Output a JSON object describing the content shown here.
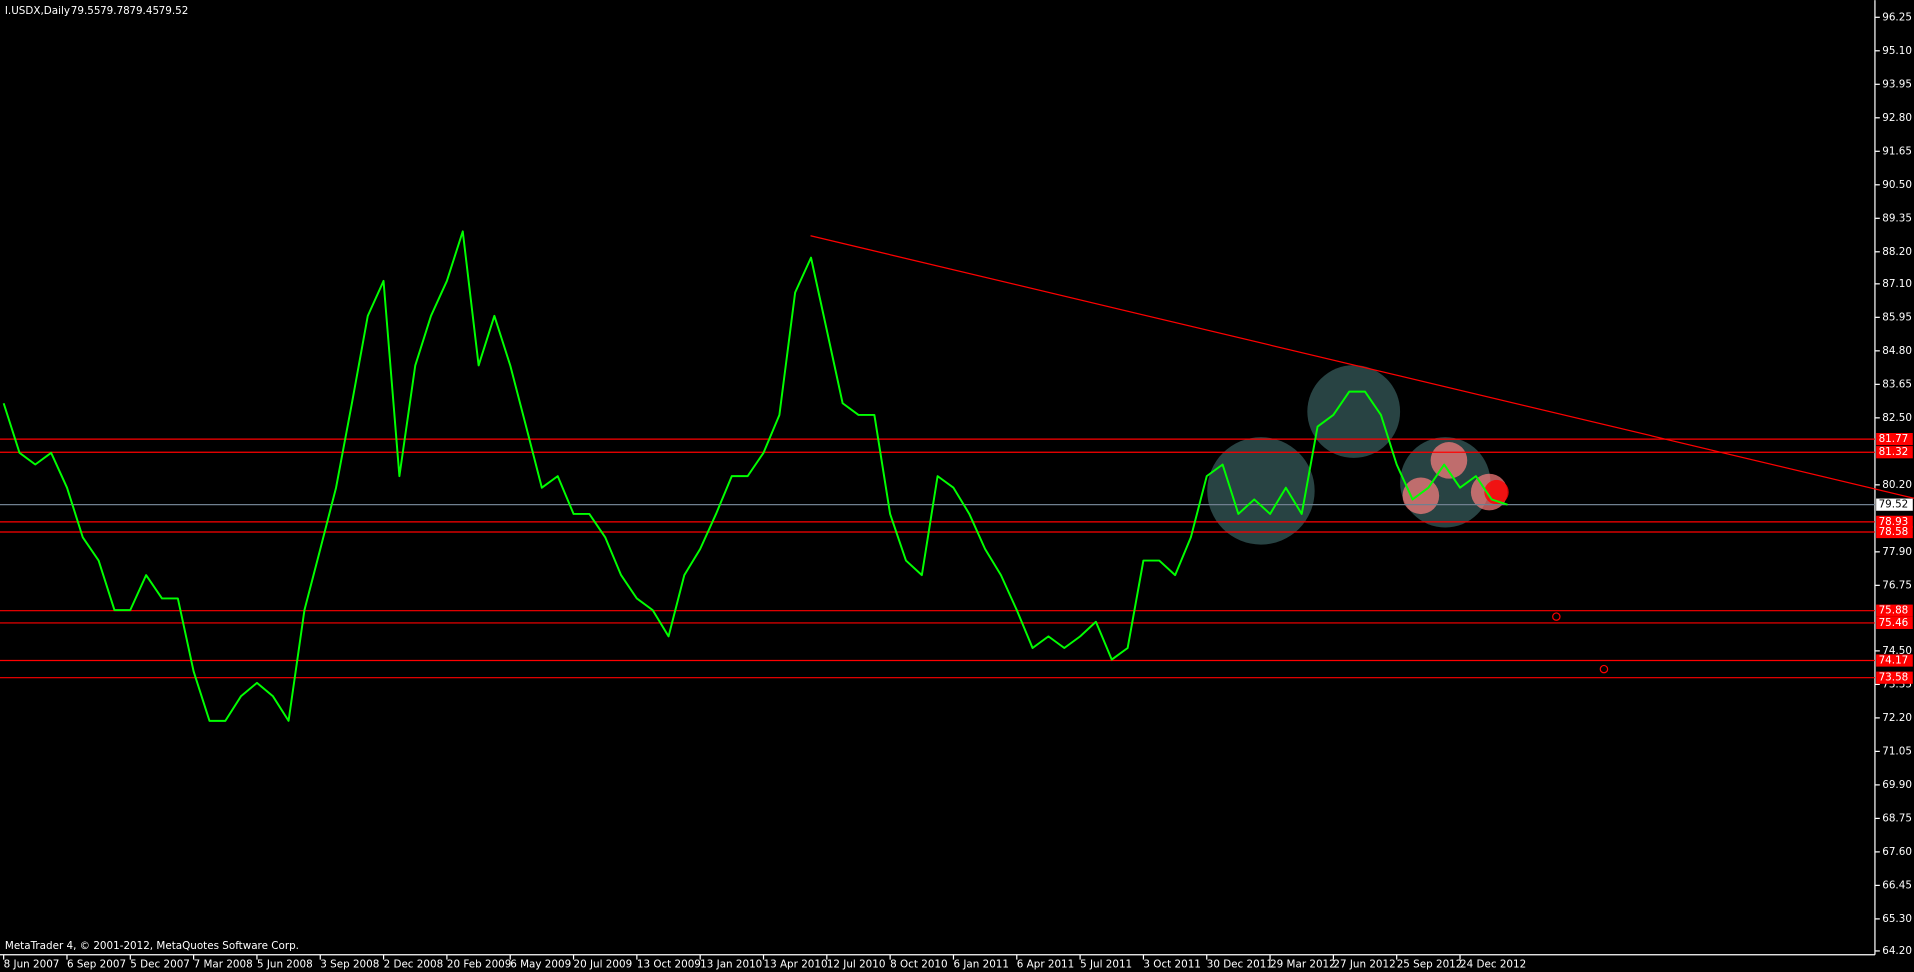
{
  "chart_data": {
    "type": "line",
    "title": "I.USDX,Daily",
    "header_values": [
      79.55,
      79.78,
      79.45,
      79.52
    ],
    "footer": "MetaTrader 4, © 2001-2012, MetaQuotes Software Corp.",
    "color": "#00ff00",
    "categories": [
      "8 Jun 2007",
      null,
      null,
      null,
      "6 Sep 2007",
      null,
      null,
      null,
      "5 Dec 2007",
      null,
      null,
      null,
      "7 Mar 2008",
      null,
      null,
      null,
      "5 Jun 2008",
      null,
      null,
      null,
      "3 Sep 2008",
      null,
      null,
      null,
      "2 Dec 2008",
      null,
      null,
      null,
      "20 Feb 2009",
      null,
      null,
      null,
      "6 May 2009",
      null,
      null,
      null,
      "20 Jul 2009",
      null,
      null,
      null,
      "13 Oct 2009",
      null,
      null,
      null,
      "13 Jan 2010",
      null,
      null,
      null,
      "13 Apr 2010",
      null,
      null,
      null,
      "12 Jul 2010",
      null,
      null,
      null,
      "8 Oct 2010",
      null,
      null,
      null,
      "6 Jan 2011",
      null,
      null,
      null,
      "6 Apr 2011",
      null,
      null,
      null,
      "5 Jul 2011",
      null,
      null,
      null,
      "3 Oct 2011",
      null,
      null,
      null,
      "30 Dec 2011",
      null,
      null,
      null,
      "29 Mar 2012",
      null,
      null,
      null,
      "27 Jun 2012",
      null,
      null,
      null,
      "25 Sep 2012",
      null,
      null,
      null,
      "24 Dec 2012",
      null,
      null,
      null
    ],
    "values": [
      83.0,
      81.3,
      80.9,
      81.3,
      80.1,
      78.4,
      77.6,
      75.9,
      75.9,
      77.1,
      76.3,
      76.3,
      73.8,
      72.1,
      72.1,
      72.95,
      73.4,
      72.95,
      72.1,
      75.9,
      78.0,
      80.1,
      83.0,
      86.0,
      87.2,
      80.5,
      84.3,
      86.0,
      87.2,
      88.9,
      84.3,
      86.0,
      84.3,
      82.2,
      80.1,
      80.5,
      79.2,
      79.2,
      78.4,
      77.1,
      76.3,
      75.9,
      75.0,
      77.1,
      78.0,
      79.2,
      80.5,
      80.5,
      81.3,
      82.6,
      86.8,
      88.0,
      85.5,
      83.0,
      82.6,
      82.6,
      79.2,
      77.6,
      77.1,
      80.5,
      80.1,
      79.2,
      78.0,
      77.1,
      75.9,
      74.6,
      75.0,
      74.6,
      75.0,
      75.5,
      74.2,
      74.6,
      77.6,
      77.6,
      77.1,
      78.4,
      80.5,
      80.9,
      79.2,
      79.7,
      79.2,
      80.1,
      79.2,
      82.2,
      82.6,
      83.4,
      83.4,
      82.6,
      80.9,
      79.7,
      80.1,
      80.9,
      80.1,
      80.5,
      79.7,
      79.52
    ],
    "ylim": [
      64.07,
      96.67
    ],
    "yticks": [
      96.25,
      {
        "value": 95.1,
        "label": "95.10"
      },
      93.95,
      {
        "value": 92.8,
        "label": "92.80"
      },
      91.65,
      {
        "value": 90.5,
        "label": "90.50"
      },
      89.35,
      {
        "value": 88.2,
        "label": "88.20"
      },
      {
        "value": 87.1,
        "label": "87.10"
      },
      85.95,
      {
        "value": 84.8,
        "label": "84.80"
      },
      83.65,
      {
        "value": 82.5,
        "label": "82.50"
      },
      {
        "value": 80.2,
        "label": "80.20"
      },
      {
        "value": 77.9,
        "label": "77.90"
      },
      76.75,
      {
        "value": 74.5,
        "label": "74.50"
      },
      73.35,
      {
        "value": 72.2,
        "label": "72.20"
      },
      71.05,
      {
        "value": 69.9,
        "label": "69.90"
      },
      68.75,
      {
        "value": 67.6,
        "label": "67.60"
      },
      66.45,
      {
        "value": 65.3,
        "label": "65.30"
      },
      {
        "value": 64.2,
        "label": "64.20"
      }
    ],
    "grid": false,
    "levels": [
      {
        "value": 81.77,
        "color": "#ff0000"
      },
      {
        "value": 81.32,
        "color": "#ff0000"
      },
      {
        "value": 79.52,
        "color": "#708090"
      },
      {
        "value": 78.93,
        "color": "#ff0000"
      },
      {
        "value": 78.58,
        "color": "#ff0000"
      },
      {
        "value": 75.88,
        "color": "#ff0000"
      },
      {
        "value": 75.46,
        "color": "#ff0000"
      },
      {
        "value": 74.17,
        "color": "#ff0000"
      },
      {
        "value": 73.58,
        "color": "#ff0000"
      }
    ],
    "trendline": {
      "color": "#ff0000",
      "values": [
        88.75,
        79.74
      ]
    }
  }
}
